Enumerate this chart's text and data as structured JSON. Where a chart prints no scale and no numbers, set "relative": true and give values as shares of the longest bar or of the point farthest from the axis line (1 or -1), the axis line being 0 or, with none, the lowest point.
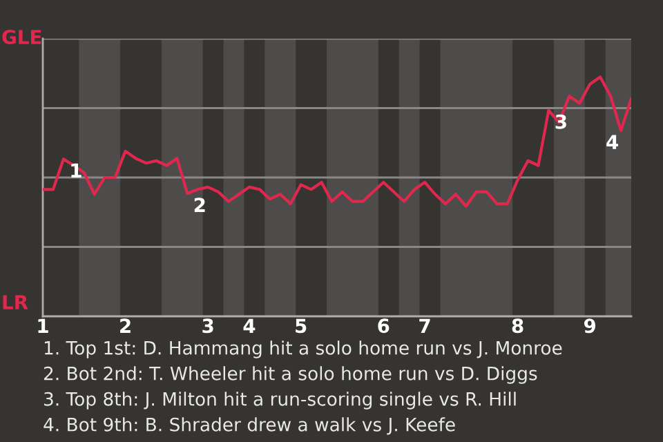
{
  "chart_data": {
    "type": "line",
    "relative": true,
    "categories": [
      "1",
      null,
      null,
      null,
      null,
      null,
      null,
      null,
      "2",
      null,
      null,
      null,
      null,
      null,
      null,
      null,
      "3",
      null,
      null,
      null,
      "4",
      null,
      null,
      null,
      null,
      "5",
      null,
      null,
      null,
      null,
      null,
      null,
      null,
      "6",
      null,
      null,
      null,
      "7",
      null,
      null,
      null,
      null,
      null,
      null,
      null,
      null,
      "8",
      null,
      null,
      null,
      null,
      null,
      null,
      "9",
      null,
      null,
      null,
      null
    ],
    "series": [
      {
        "color": "#e0284f",
        "values": [
          0.53,
          0.53,
          0.657,
          0.63,
          0.6,
          0.51,
          0.58,
          0.58,
          0.69,
          0.66,
          0.64,
          0.65,
          0.63,
          0.66,
          0.513,
          0.53,
          0.54,
          0.52,
          0.48,
          0.51,
          0.54,
          0.53,
          0.49,
          0.51,
          0.47,
          0.55,
          0.53,
          0.56,
          0.48,
          0.52,
          0.48,
          0.48,
          0.52,
          0.56,
          0.52,
          0.48,
          0.53,
          0.56,
          0.51,
          0.47,
          0.51,
          0.46,
          0.52,
          0.52,
          0.47,
          0.47,
          0.57,
          0.65,
          0.63,
          0.861,
          0.81,
          0.92,
          0.89,
          0.97,
          1,
          0.92,
          0.776,
          0.91
        ]
      }
    ],
    "grid": "y",
    "annotations": [
      {
        "text": "1",
        "y": 0.657
      },
      {
        "text": "2",
        "y": 0.513
      },
      {
        "text": "3",
        "y": 0.861
      },
      {
        "text": "4",
        "y": 0.776
      },
      "GLE",
      "LR",
      "1. Top 1st: D. Hammang hit a solo home run vs J. Monroe",
      "2. Bot 2nd: T. Wheeler hit a solo home run vs D. Diggs",
      "3. Top 8th: J. Milton hit a run-scoring single vs R. Hill",
      "4. Bot 9th: B. Shrader drew a walk vs J. Keefe"
    ]
  }
}
